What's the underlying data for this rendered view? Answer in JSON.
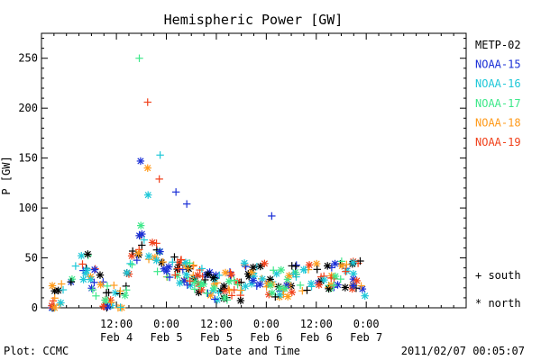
{
  "chart_data": {
    "type": "scatter",
    "title": "Hemispheric Power [GW]",
    "xlabel": "Date and Time",
    "ylabel": "P [GW]",
    "ylim": [
      0,
      275
    ],
    "yticks": [
      0,
      50,
      100,
      150,
      200,
      250
    ],
    "xlim_hours": [
      0,
      102
    ],
    "x_ticks": [
      {
        "hour": 18,
        "time": "12:00",
        "date": "Feb 4"
      },
      {
        "hour": 30,
        "time": "0:00",
        "date": "Feb 5"
      },
      {
        "hour": 42,
        "time": "12:00",
        "date": "Feb 5"
      },
      {
        "hour": 54,
        "time": "0:00",
        "date": "Feb 6"
      },
      {
        "hour": 66,
        "time": "12:00",
        "date": "Feb 6"
      },
      {
        "hour": 78,
        "time": "0:00",
        "date": "Feb 7"
      }
    ],
    "legend": {
      "satellites": [
        {
          "name": "METP-02",
          "color": "#000000"
        },
        {
          "name": "NOAA-15",
          "color": "#1a2fd6"
        },
        {
          "name": "NOAA-16",
          "color": "#1ec8d8"
        },
        {
          "name": "NOAA-17",
          "color": "#3ee88a"
        },
        {
          "name": "NOAA-18",
          "color": "#ff9a1a"
        },
        {
          "name": "NOAA-19",
          "color": "#f0401a"
        }
      ],
      "markers": [
        {
          "symbol": "+",
          "label": "south"
        },
        {
          "symbol": "*",
          "label": "north"
        }
      ]
    },
    "highlights": [
      {
        "series": "NOAA-17",
        "marker": "+",
        "x": 23.5,
        "y": 250
      },
      {
        "series": "NOAA-19",
        "marker": "+",
        "x": 25.5,
        "y": 206
      },
      {
        "series": "NOAA-16",
        "marker": "+",
        "x": 28.5,
        "y": 153
      },
      {
        "series": "NOAA-15",
        "marker": "*",
        "x": 23.8,
        "y": 147
      },
      {
        "series": "NOAA-18",
        "marker": "*",
        "x": 25.5,
        "y": 140
      },
      {
        "series": "NOAA-19",
        "marker": "+",
        "x": 28.3,
        "y": 129
      },
      {
        "series": "NOAA-16",
        "marker": "*",
        "x": 25.6,
        "y": 113
      },
      {
        "series": "NOAA-15",
        "marker": "+",
        "x": 32.3,
        "y": 116
      },
      {
        "series": "NOAA-15",
        "marker": "+",
        "x": 34.9,
        "y": 104
      },
      {
        "series": "NOAA-15",
        "marker": "+",
        "x": 55.3,
        "y": 92
      }
    ]
  },
  "footer": {
    "left": "Plot: CCMC",
    "center": "Date and Time",
    "right": "2011/02/07 00:05:07"
  }
}
